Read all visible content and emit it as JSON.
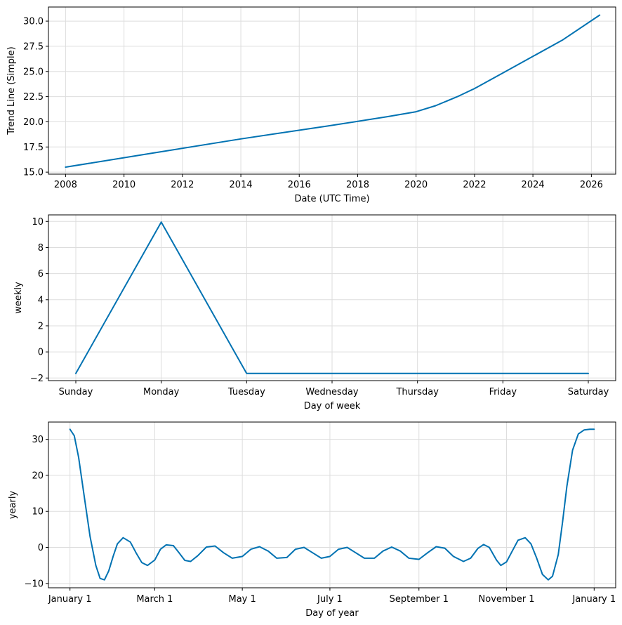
{
  "colors": {
    "series": "#0072B2",
    "grid": "#dddddd"
  },
  "chart_data": [
    {
      "type": "line",
      "xlabel": "Date (UTC Time)",
      "ylabel": "Trend Line (Simple)",
      "xscale": "date",
      "grid": true,
      "xlim": [
        "2007-06-01",
        "2026-11-01"
      ],
      "ylim": [
        14.8,
        31.4
      ],
      "xticks": [
        "2008",
        "2010",
        "2012",
        "2014",
        "2016",
        "2018",
        "2020",
        "2022",
        "2024",
        "2026"
      ],
      "yticks": [
        "15.0",
        "17.5",
        "20.0",
        "22.5",
        "25.0",
        "27.5",
        "30.0"
      ],
      "series": [
        {
          "x": [
            "2008-01-01",
            "2011-01-01",
            "2014-01-01",
            "2017-01-01",
            "2019-01-01",
            "2020-01-01",
            "2020-09-01",
            "2021-06-01",
            "2022-01-01",
            "2023-01-01",
            "2024-01-01",
            "2025-01-01",
            "2026-04-15"
          ],
          "y": [
            15.5,
            16.9,
            18.3,
            19.6,
            20.5,
            21.0,
            21.6,
            22.5,
            23.3,
            24.9,
            26.5,
            28.1,
            30.6
          ]
        }
      ]
    },
    {
      "type": "line",
      "xlabel": "Day of week",
      "ylabel": "weekly",
      "grid": true,
      "categories": [
        "Sunday",
        "Monday",
        "Tuesday",
        "Wednesday",
        "Thursday",
        "Friday",
        "Saturday"
      ],
      "ylim": [
        -2.2,
        10.5
      ],
      "yticks": [
        -2,
        0,
        2,
        4,
        6,
        8,
        10
      ],
      "series": [
        {
          "values": [
            -1.65,
            9.95,
            -1.65,
            -1.65,
            -1.65,
            -1.65,
            -1.65
          ]
        }
      ]
    },
    {
      "type": "line",
      "xlabel": "Day of year",
      "ylabel": "yearly",
      "grid": true,
      "xlim": [
        -15,
        380
      ],
      "ylim": [
        -11.2,
        34.8
      ],
      "xticks": [
        {
          "day": 0,
          "label": "January 1"
        },
        {
          "day": 59,
          "label": "March 1"
        },
        {
          "day": 120,
          "label": "May 1"
        },
        {
          "day": 181,
          "label": "July 1"
        },
        {
          "day": 243,
          "label": "September 1"
        },
        {
          "day": 304,
          "label": "November 1"
        },
        {
          "day": 365,
          "label": "January 1"
        }
      ],
      "yticks": [
        -10,
        0,
        10,
        20,
        30
      ],
      "series": [
        {
          "x": [
            0,
            3,
            6,
            10,
            14,
            18,
            21,
            24,
            27,
            30,
            33,
            37,
            42,
            46,
            50,
            54,
            59,
            63,
            67,
            72,
            76,
            80,
            84,
            89,
            95,
            101,
            107,
            113,
            120,
            126,
            132,
            138,
            144,
            151,
            157,
            163,
            169,
            175,
            181,
            187,
            193,
            199,
            205,
            212,
            218,
            224,
            230,
            236,
            243,
            249,
            255,
            261,
            267,
            274,
            279,
            284,
            288,
            292,
            297,
            300,
            304,
            308,
            312,
            317,
            321,
            325,
            329,
            333,
            336,
            340,
            343,
            346,
            350,
            354,
            358,
            362,
            365
          ],
          "y": [
            32.8,
            31.0,
            25.0,
            14.0,
            3.0,
            -5.0,
            -8.6,
            -9.0,
            -6.5,
            -2.5,
            1.0,
            2.7,
            1.5,
            -1.5,
            -4.2,
            -5.0,
            -3.5,
            -0.5,
            0.7,
            0.5,
            -1.5,
            -3.6,
            -3.9,
            -2.3,
            0.1,
            0.4,
            -1.5,
            -3.0,
            -2.5,
            -0.5,
            0.2,
            -1.0,
            -3.0,
            -2.8,
            -0.5,
            0.0,
            -1.5,
            -3.0,
            -2.5,
            -0.5,
            0.0,
            -1.5,
            -3.0,
            -3.0,
            -1.0,
            0.1,
            -1.0,
            -3.0,
            -3.3,
            -1.5,
            0.2,
            -0.2,
            -2.5,
            -3.9,
            -3.0,
            -0.3,
            0.8,
            0.0,
            -3.5,
            -5.0,
            -4.0,
            -1.0,
            2.0,
            2.7,
            1.0,
            -3.0,
            -7.5,
            -9.0,
            -8.0,
            -2.0,
            7.0,
            17.0,
            27.0,
            31.5,
            32.6,
            32.8,
            32.8
          ]
        }
      ]
    }
  ]
}
